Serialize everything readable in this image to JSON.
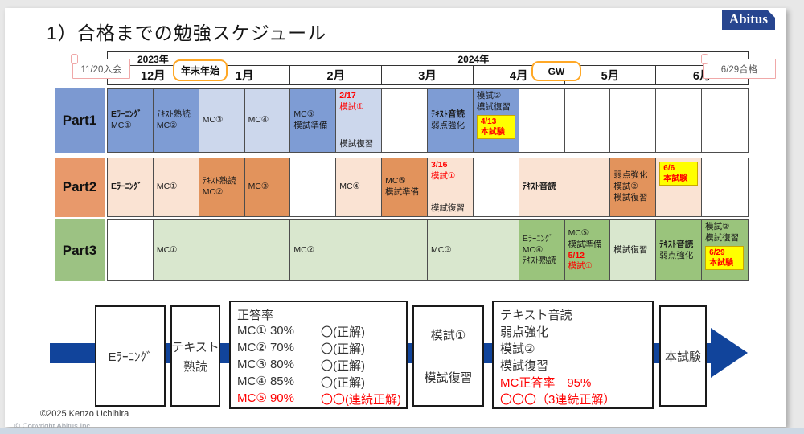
{
  "page": {
    "title": "1）合格までの勉強スケジュール",
    "logo": "Abitus",
    "footer_author": "©2025 Kenzo Uchihira",
    "footer_copyright_prefix": "© Copyright ",
    "footer_copyright_brand": "Abitus",
    "footer_copyright_suffix": " Inc."
  },
  "colors": {
    "red": "#FF0000",
    "exam_bg": "#FFFF00",
    "exam_border": "#C9A800",
    "arrow": "#11449B",
    "callout_pink": "#F0A8A8",
    "callout_orange": "#FFA826",
    "logo_bg": "#27458F",
    "footer_bar": "#CDD8E4"
  },
  "timeline": {
    "years": [
      {
        "label": "2023年",
        "span": 2
      },
      {
        "label": "2024年",
        "span": 12
      }
    ],
    "months": [
      "12月",
      "1月",
      "2月",
      "3月",
      "4月",
      "5月",
      "6月"
    ],
    "callouts": [
      {
        "id": "enrollment",
        "label": "11/20入会",
        "style": "scroll"
      },
      {
        "id": "newyear",
        "label": "年末年始",
        "style": "rounded"
      },
      {
        "id": "gw",
        "label": "GW",
        "style": "rounded"
      },
      {
        "id": "pass",
        "label": "6/29合格",
        "style": "scroll"
      }
    ]
  },
  "rows": [
    {
      "label": "Part1",
      "colors": {
        "label": "#7C99D1",
        "dark": "#7E9CD4",
        "light": "#CCD7EC"
      },
      "cells": [
        {
          "span": 1,
          "shade": "dark",
          "lines": [
            {
              "t": "Eﾗｰﾆﾝｸﾞ",
              "bold": true
            },
            {
              "t": "MC①"
            }
          ]
        },
        {
          "span": 1,
          "shade": "dark",
          "lines": [
            {
              "t": "ﾃｷｽﾄ熟読"
            },
            {
              "t": "MC②"
            }
          ]
        },
        {
          "span": 1,
          "shade": "light",
          "lines": [
            {
              "t": "MC③"
            }
          ]
        },
        {
          "span": 1,
          "shade": "light",
          "lines": [
            {
              "t": "MC④"
            }
          ]
        },
        {
          "span": 1,
          "shade": "dark",
          "lines": [
            {
              "t": "MC⑤"
            },
            {
              "t": "模試準備"
            }
          ]
        },
        {
          "span": 1,
          "shade": "light",
          "align": "top",
          "lines": [
            {
              "t": "2/17",
              "red": true,
              "bold": true
            },
            {
              "t": "模試①",
              "red": true
            },
            {
              "sp": true
            },
            {
              "t": "模試復習"
            }
          ]
        },
        {
          "span": 1,
          "shade": "white"
        },
        {
          "span": 1,
          "shade": "dark",
          "lines": [
            {
              "t": "ﾃｷｽﾄ音読",
              "bold": true
            },
            {
              "t": "弱点強化"
            }
          ]
        },
        {
          "span": 1,
          "shade": "dark",
          "align": "top",
          "lines": [
            {
              "t": "模試②"
            },
            {
              "t": "模試復習"
            }
          ],
          "exam": {
            "date": "4/13",
            "label": "本試験"
          }
        },
        {
          "span": 1,
          "shade": "white"
        },
        {
          "span": 1,
          "shade": "white"
        },
        {
          "span": 1,
          "shade": "white"
        },
        {
          "span": 1,
          "shade": "white"
        },
        {
          "span": 1,
          "shade": "white"
        }
      ]
    },
    {
      "label": "Part2",
      "colors": {
        "label": "#E8996B",
        "dark": "#E2935C",
        "light": "#FAE3D3"
      },
      "cells": [
        {
          "span": 1,
          "shade": "light",
          "lines": [
            {
              "t": "Eﾗｰﾆﾝｸﾞ",
              "bold": true
            }
          ]
        },
        {
          "span": 1,
          "shade": "light",
          "lines": [
            {
              "t": "MC①"
            }
          ]
        },
        {
          "span": 1,
          "shade": "dark",
          "lines": [
            {
              "t": "ﾃｷｽﾄ熟読"
            },
            {
              "t": "MC②"
            }
          ]
        },
        {
          "span": 1,
          "shade": "dark",
          "lines": [
            {
              "t": "MC③"
            }
          ]
        },
        {
          "span": 1,
          "shade": "white"
        },
        {
          "span": 1,
          "shade": "light",
          "lines": [
            {
              "t": "MC④"
            }
          ]
        },
        {
          "span": 1,
          "shade": "dark",
          "lines": [
            {
              "t": "MC⑤"
            },
            {
              "t": "模試準備"
            }
          ]
        },
        {
          "span": 1,
          "shade": "light",
          "align": "top",
          "lines": [
            {
              "t": "3/16",
              "red": true,
              "bold": true
            },
            {
              "t": "模試①",
              "red": true
            },
            {
              "sp": true
            },
            {
              "t": "模試復習"
            }
          ]
        },
        {
          "span": 1,
          "shade": "white"
        },
        {
          "span": 2,
          "shade": "light",
          "lines": [
            {
              "t": "ﾃｷｽﾄ音読",
              "bold": true
            }
          ]
        },
        {
          "span": 1,
          "shade": "dark",
          "lines": [
            {
              "t": "弱点強化"
            },
            {
              "t": "模試②"
            },
            {
              "t": "模試復習"
            }
          ]
        },
        {
          "span": 1,
          "shade": "light",
          "align": "top",
          "exam": {
            "date": "6/6",
            "label": "本試験"
          }
        },
        {
          "span": 1,
          "shade": "white"
        }
      ]
    },
    {
      "label": "Part3",
      "colors": {
        "label": "#9CC283",
        "dark": "#9AC47C",
        "light": "#D9E7CE"
      },
      "cells": [
        {
          "span": 1,
          "shade": "white"
        },
        {
          "span": 3,
          "shade": "light",
          "lines": [
            {
              "t": "MC①"
            }
          ]
        },
        {
          "span": 3,
          "shade": "light",
          "lines": [
            {
              "t": "MC②"
            }
          ]
        },
        {
          "span": 2,
          "shade": "light",
          "lines": [
            {
              "t": "MC③"
            }
          ]
        },
        {
          "span": 1,
          "shade": "dark",
          "lines": [
            {
              "t": "Eﾗｰﾆﾝｸﾞ"
            },
            {
              "t": "MC④"
            },
            {
              "t": "ﾃｷｽﾄ熟読"
            }
          ]
        },
        {
          "span": 1,
          "shade": "dark",
          "lines": [
            {
              "t": "MC⑤"
            },
            {
              "t": "模試準備"
            },
            {
              "t": "5/12",
              "red": true,
              "bold": true
            },
            {
              "t": "模試①",
              "red": true
            }
          ]
        },
        {
          "span": 1,
          "shade": "light",
          "lines": [
            {
              "t": "模試復習"
            }
          ]
        },
        {
          "span": 1,
          "shade": "dark",
          "lines": [
            {
              "t": "ﾃｷｽﾄ音読",
              "bold": true
            },
            {
              "t": "弱点強化"
            }
          ]
        },
        {
          "span": 1,
          "shade": "dark",
          "align": "top",
          "lines": [
            {
              "t": "模試②"
            },
            {
              "t": "模試復習"
            }
          ],
          "exam": {
            "date": "6/29",
            "label": "本試験"
          }
        }
      ]
    }
  ],
  "flow": {
    "boxes": [
      {
        "id": "elearning",
        "layout": "center",
        "lines": [
          {
            "t": "Eﾗｰﾆﾝｸﾞ"
          }
        ]
      },
      {
        "id": "text-reading",
        "layout": "center",
        "lines": [
          {
            "t": "テキスト"
          },
          {
            "t": "熟読"
          }
        ]
      },
      {
        "id": "accuracy-rate",
        "layout": "list",
        "lines": [
          {
            "t": "正答率"
          },
          {
            "t": "MC① 30%",
            "r": "〇(正解)"
          },
          {
            "t": "MC② 70%",
            "r": "〇(正解)"
          },
          {
            "t": "MC③ 80%",
            "r": "〇(正解)"
          },
          {
            "t": "MC④ 85%",
            "r": "〇(正解)"
          },
          {
            "t": "MC⑤ 90%",
            "r": "〇〇(連続正解)",
            "red": true
          }
        ]
      },
      {
        "id": "mock-exam-1",
        "layout": "center",
        "lines": [
          {
            "t": "模試①"
          },
          {
            "sp": true
          },
          {
            "t": "模試復習"
          }
        ]
      },
      {
        "id": "final-prep",
        "layout": "list",
        "lines": [
          {
            "t": "テキスト音読"
          },
          {
            "t": "弱点強化"
          },
          {
            "t": "模試②"
          },
          {
            "t": "模試復習"
          },
          {
            "t": "MC正答率　95%",
            "red": true
          },
          {
            "t": "〇〇〇（3連続正解）",
            "red": true
          }
        ]
      },
      {
        "id": "final-exam",
        "layout": "center",
        "lines": [
          {
            "t": "本試験"
          }
        ]
      }
    ]
  }
}
